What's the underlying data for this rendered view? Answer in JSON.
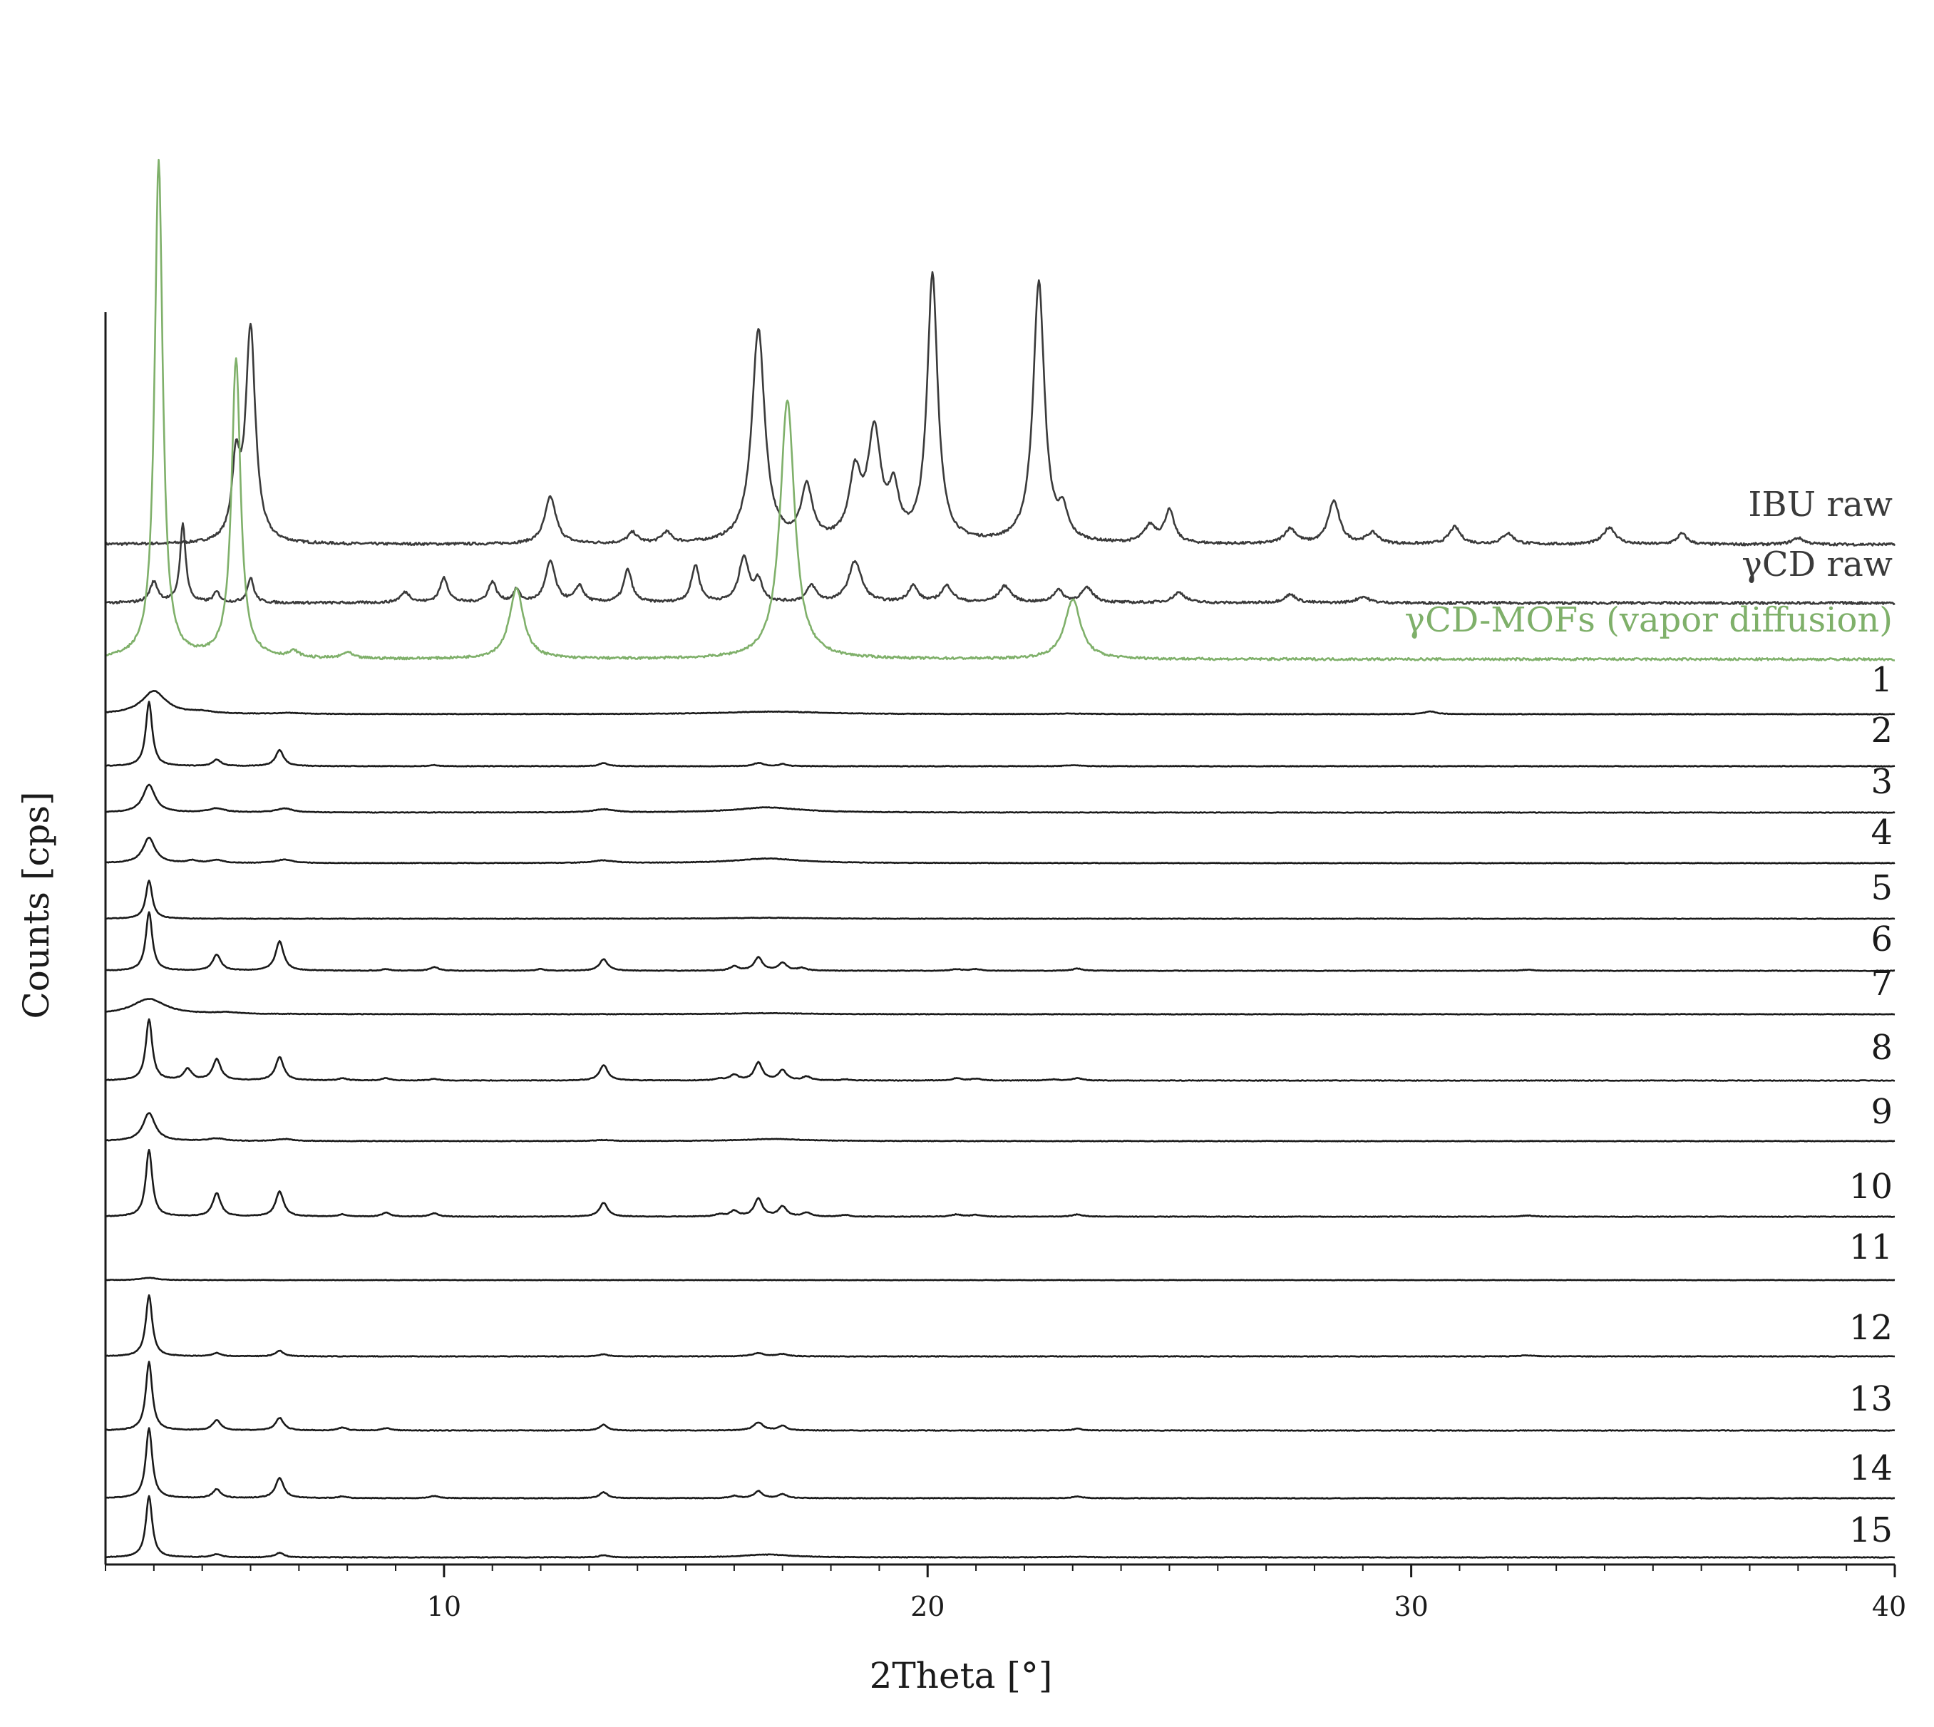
{
  "chart_data": {
    "type": "line",
    "xlabel": "2Theta [°]",
    "ylabel": "Counts [cps]",
    "xlim": [
      3,
      40
    ],
    "x_ticks": [
      10,
      20,
      30,
      40
    ],
    "x_tick_labels": [
      "10",
      "20",
      "30",
      "40"
    ],
    "grid": false,
    "layout": "stacked-offset",
    "colors": {
      "black": "#1a1a1a",
      "green": "#7fb06a"
    },
    "series": [
      {
        "name": "IBU raw",
        "color": "#3a3a3a",
        "baseline": 0.0,
        "peaks": [
          [
            6.0,
            1.0,
            0.12
          ],
          [
            5.7,
            0.35,
            0.1
          ],
          [
            12.2,
            0.22,
            0.14
          ],
          [
            13.9,
            0.05,
            0.12
          ],
          [
            14.6,
            0.05,
            0.12
          ],
          [
            16.5,
            1.0,
            0.16
          ],
          [
            17.5,
            0.25,
            0.14
          ],
          [
            18.5,
            0.3,
            0.15
          ],
          [
            18.9,
            0.5,
            0.16
          ],
          [
            19.3,
            0.22,
            0.12
          ],
          [
            20.1,
            1.25,
            0.13
          ],
          [
            22.3,
            1.22,
            0.14
          ],
          [
            22.8,
            0.12,
            0.12
          ],
          [
            24.6,
            0.08,
            0.15
          ],
          [
            25.0,
            0.15,
            0.12
          ],
          [
            27.5,
            0.07,
            0.15
          ],
          [
            28.4,
            0.2,
            0.14
          ],
          [
            29.2,
            0.05,
            0.15
          ],
          [
            30.9,
            0.08,
            0.14
          ],
          [
            32.0,
            0.05,
            0.14
          ],
          [
            34.1,
            0.08,
            0.15
          ],
          [
            35.6,
            0.05,
            0.12
          ],
          [
            38.0,
            0.03,
            0.15
          ]
        ]
      },
      {
        "name": "γCD raw",
        "color": "#3a3a3a",
        "baseline": 0.0,
        "peaks": [
          [
            4.0,
            0.1,
            0.1
          ],
          [
            4.6,
            0.38,
            0.07
          ],
          [
            5.3,
            0.05,
            0.08
          ],
          [
            6.0,
            0.12,
            0.08
          ],
          [
            9.2,
            0.05,
            0.12
          ],
          [
            10.0,
            0.12,
            0.1
          ],
          [
            11.0,
            0.1,
            0.1
          ],
          [
            11.5,
            0.06,
            0.08
          ],
          [
            12.2,
            0.2,
            0.12
          ],
          [
            12.8,
            0.08,
            0.1
          ],
          [
            13.8,
            0.16,
            0.1
          ],
          [
            15.2,
            0.18,
            0.1
          ],
          [
            16.2,
            0.22,
            0.12
          ],
          [
            16.5,
            0.1,
            0.1
          ],
          [
            17.6,
            0.08,
            0.12
          ],
          [
            18.5,
            0.2,
            0.16
          ],
          [
            19.7,
            0.08,
            0.12
          ],
          [
            20.4,
            0.08,
            0.14
          ],
          [
            21.6,
            0.08,
            0.15
          ],
          [
            22.7,
            0.06,
            0.12
          ],
          [
            23.3,
            0.07,
            0.15
          ],
          [
            25.2,
            0.05,
            0.15
          ],
          [
            27.5,
            0.04,
            0.15
          ],
          [
            29.0,
            0.03,
            0.15
          ]
        ]
      },
      {
        "name": "γCD-MOFs (vapor diffusion)",
        "color": "#7fb06a",
        "baseline": 0.0,
        "peaks": [
          [
            4.1,
            2.5,
            0.1
          ],
          [
            5.7,
            1.5,
            0.11
          ],
          [
            6.9,
            0.03,
            0.12
          ],
          [
            8.0,
            0.03,
            0.12
          ],
          [
            11.5,
            0.35,
            0.18
          ],
          [
            17.1,
            1.3,
            0.18
          ],
          [
            23.0,
            0.3,
            0.2
          ]
        ]
      },
      {
        "name": "1",
        "baseline": 0.0,
        "peaks": [
          [
            4.0,
            0.45,
            0.3
          ],
          [
            5.0,
            0.04,
            0.3
          ],
          [
            6.8,
            0.02,
            0.3
          ],
          [
            16.8,
            0.05,
            1.2
          ],
          [
            23.0,
            0.01,
            0.4
          ],
          [
            30.4,
            0.05,
            0.15
          ]
        ]
      },
      {
        "name": "2",
        "baseline": 0.0,
        "peaks": [
          [
            3.9,
            1.2,
            0.08
          ],
          [
            5.3,
            0.12,
            0.1
          ],
          [
            6.6,
            0.3,
            0.1
          ],
          [
            9.8,
            0.02,
            0.1
          ],
          [
            13.3,
            0.06,
            0.1
          ],
          [
            16.5,
            0.06,
            0.12
          ],
          [
            17.0,
            0.04,
            0.1
          ],
          [
            23.0,
            0.02,
            0.15
          ]
        ]
      },
      {
        "name": "3",
        "baseline": 0.0,
        "peaks": [
          [
            3.9,
            0.55,
            0.15
          ],
          [
            5.3,
            0.08,
            0.2
          ],
          [
            6.7,
            0.08,
            0.2
          ],
          [
            13.3,
            0.06,
            0.25
          ],
          [
            16.7,
            0.1,
            0.8
          ]
        ]
      },
      {
        "name": "4",
        "baseline": 0.0,
        "peaks": [
          [
            3.9,
            0.5,
            0.15
          ],
          [
            4.8,
            0.05,
            0.12
          ],
          [
            5.3,
            0.06,
            0.15
          ],
          [
            6.7,
            0.07,
            0.2
          ],
          [
            13.3,
            0.05,
            0.25
          ],
          [
            16.7,
            0.09,
            0.8
          ]
        ]
      },
      {
        "name": "5",
        "baseline": 0.0,
        "peaks": [
          [
            3.9,
            0.8,
            0.08
          ],
          [
            16.7,
            0.02,
            1.0
          ]
        ]
      },
      {
        "name": "6",
        "baseline": 0.0,
        "peaks": [
          [
            3.9,
            1.1,
            0.08
          ],
          [
            5.3,
            0.3,
            0.1
          ],
          [
            6.6,
            0.55,
            0.1
          ],
          [
            8.8,
            0.03,
            0.1
          ],
          [
            9.8,
            0.07,
            0.1
          ],
          [
            12.0,
            0.03,
            0.1
          ],
          [
            13.3,
            0.22,
            0.1
          ],
          [
            16.0,
            0.08,
            0.1
          ],
          [
            16.5,
            0.25,
            0.1
          ],
          [
            17.0,
            0.15,
            0.1
          ],
          [
            17.4,
            0.05,
            0.1
          ],
          [
            20.6,
            0.03,
            0.12
          ],
          [
            21.0,
            0.03,
            0.12
          ],
          [
            23.1,
            0.04,
            0.12
          ],
          [
            32.4,
            0.02,
            0.15
          ]
        ]
      },
      {
        "name": "7",
        "baseline": 0.0,
        "peaks": [
          [
            3.9,
            0.3,
            0.4
          ],
          [
            5.5,
            0.03,
            0.3
          ],
          [
            16.7,
            0.02,
            1.0
          ]
        ]
      },
      {
        "name": "8",
        "baseline": 0.0,
        "peaks": [
          [
            3.9,
            1.1,
            0.08
          ],
          [
            4.7,
            0.2,
            0.1
          ],
          [
            5.3,
            0.38,
            0.1
          ],
          [
            6.6,
            0.42,
            0.1
          ],
          [
            7.9,
            0.04,
            0.1
          ],
          [
            8.8,
            0.04,
            0.1
          ],
          [
            9.8,
            0.03,
            0.1
          ],
          [
            13.3,
            0.28,
            0.1
          ],
          [
            15.7,
            0.03,
            0.1
          ],
          [
            16.0,
            0.1,
            0.1
          ],
          [
            16.5,
            0.32,
            0.1
          ],
          [
            17.0,
            0.18,
            0.1
          ],
          [
            17.5,
            0.07,
            0.1
          ],
          [
            18.3,
            0.02,
            0.1
          ],
          [
            20.6,
            0.04,
            0.12
          ],
          [
            21.0,
            0.03,
            0.12
          ],
          [
            22.6,
            0.02,
            0.12
          ],
          [
            23.1,
            0.04,
            0.12
          ]
        ]
      },
      {
        "name": "9",
        "baseline": 0.0,
        "peaks": [
          [
            3.9,
            0.55,
            0.15
          ],
          [
            5.3,
            0.05,
            0.2
          ],
          [
            6.7,
            0.04,
            0.2
          ],
          [
            13.3,
            0.02,
            0.2
          ],
          [
            16.8,
            0.04,
            0.8
          ]
        ]
      },
      {
        "name": "10",
        "baseline": 0.0,
        "peaks": [
          [
            3.9,
            1.2,
            0.08
          ],
          [
            5.3,
            0.42,
            0.1
          ],
          [
            6.6,
            0.45,
            0.1
          ],
          [
            7.9,
            0.04,
            0.1
          ],
          [
            8.8,
            0.07,
            0.1
          ],
          [
            9.8,
            0.06,
            0.1
          ],
          [
            13.3,
            0.25,
            0.1
          ],
          [
            15.7,
            0.04,
            0.1
          ],
          [
            16.0,
            0.1,
            0.1
          ],
          [
            16.5,
            0.32,
            0.1
          ],
          [
            17.0,
            0.18,
            0.1
          ],
          [
            17.5,
            0.07,
            0.1
          ],
          [
            18.3,
            0.03,
            0.1
          ],
          [
            20.6,
            0.04,
            0.12
          ],
          [
            21.0,
            0.03,
            0.12
          ],
          [
            23.1,
            0.04,
            0.12
          ],
          [
            32.4,
            0.02,
            0.15
          ]
        ]
      },
      {
        "name": "11",
        "baseline": 0.0,
        "peaks": [
          [
            3.9,
            0.06,
            0.2
          ]
        ]
      },
      {
        "name": "12",
        "baseline": 0.0,
        "peaks": [
          [
            3.9,
            1.1,
            0.08
          ],
          [
            5.3,
            0.06,
            0.1
          ],
          [
            6.6,
            0.1,
            0.1
          ],
          [
            13.3,
            0.04,
            0.1
          ],
          [
            16.5,
            0.06,
            0.15
          ],
          [
            17.0,
            0.04,
            0.12
          ],
          [
            32.4,
            0.02,
            0.15
          ]
        ]
      },
      {
        "name": "13",
        "baseline": 0.0,
        "peaks": [
          [
            3.9,
            1.2,
            0.08
          ],
          [
            5.3,
            0.18,
            0.1
          ],
          [
            6.6,
            0.22,
            0.1
          ],
          [
            7.9,
            0.05,
            0.1
          ],
          [
            8.8,
            0.04,
            0.1
          ],
          [
            13.3,
            0.1,
            0.1
          ],
          [
            16.5,
            0.14,
            0.12
          ],
          [
            17.0,
            0.08,
            0.1
          ],
          [
            23.1,
            0.03,
            0.12
          ]
        ]
      },
      {
        "name": "14",
        "baseline": 0.0,
        "peaks": [
          [
            3.9,
            1.2,
            0.08
          ],
          [
            5.3,
            0.15,
            0.1
          ],
          [
            6.6,
            0.35,
            0.1
          ],
          [
            7.9,
            0.03,
            0.1
          ],
          [
            9.8,
            0.04,
            0.1
          ],
          [
            13.3,
            0.1,
            0.1
          ],
          [
            16.0,
            0.04,
            0.1
          ],
          [
            16.5,
            0.12,
            0.1
          ],
          [
            17.0,
            0.07,
            0.1
          ],
          [
            23.1,
            0.03,
            0.12
          ]
        ]
      },
      {
        "name": "15",
        "baseline": 0.0,
        "peaks": [
          [
            3.9,
            1.1,
            0.08
          ],
          [
            5.3,
            0.05,
            0.12
          ],
          [
            6.6,
            0.08,
            0.1
          ],
          [
            13.3,
            0.04,
            0.1
          ],
          [
            16.7,
            0.05,
            0.6
          ],
          [
            23.0,
            0.01,
            0.4
          ]
        ]
      }
    ]
  }
}
